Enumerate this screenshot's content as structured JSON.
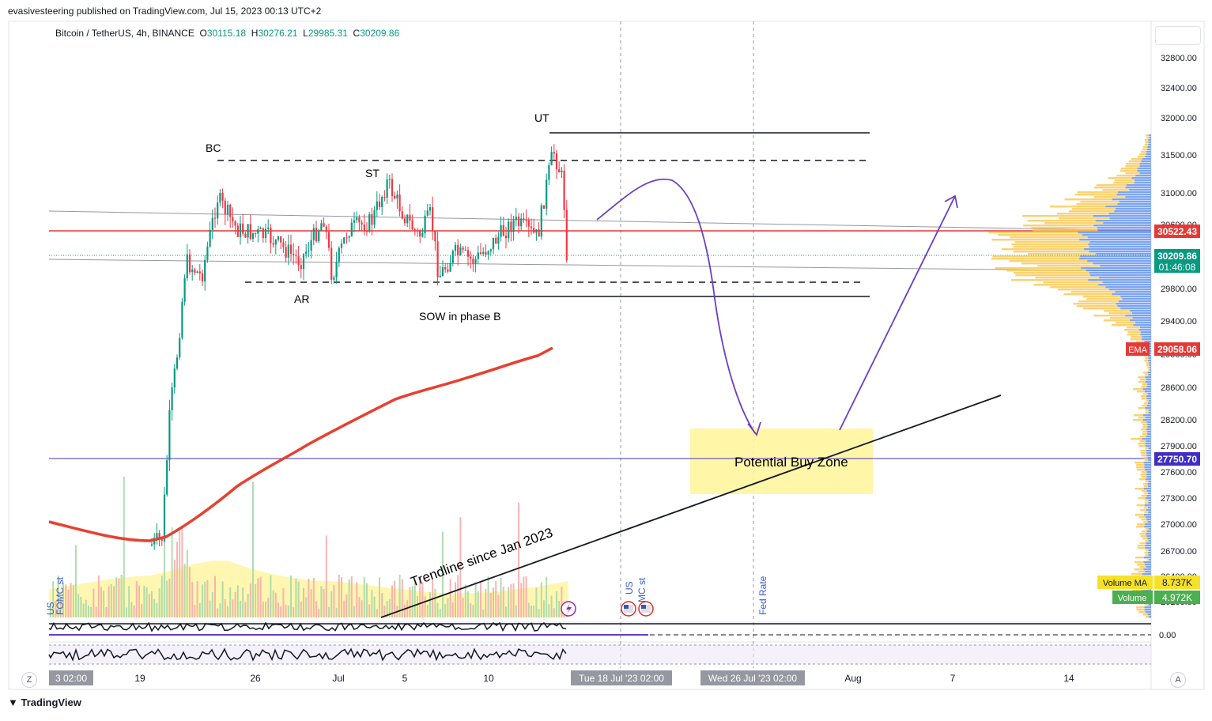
{
  "header": {
    "published_line": "evasivesteering published on TradingView.com, Jul 15, 2023 00:13 UTC+2",
    "symbol": "Bitcoin / TetherUS, 4h, BINANCE",
    "open_label": "O",
    "open": "30115.18",
    "high_label": "H",
    "high": "30276.21",
    "low_label": "L",
    "low": "29985.31",
    "close_label": "C",
    "close": "30209.86"
  },
  "footer": {
    "brand": "TradingView",
    "z_button": "Z",
    "a_button": "A"
  },
  "chart_data": {
    "type": "candlestick",
    "y_ticks": [
      "32800.00",
      "32400.00",
      "32000.00",
      "31500.00",
      "31000.00",
      "30600.00",
      "29800.00",
      "29400.00",
      "29000.00",
      "28600.00",
      "28200.00",
      "27900.00",
      "27600.00",
      "27300.00",
      "27000.00",
      "26700.00",
      "26400.00",
      "26100.00"
    ],
    "x_ticks": [
      "19",
      "26",
      "Jul",
      "5",
      "10",
      "Aug",
      "7",
      "14"
    ],
    "x_edge_labels": [
      "3   02:00"
    ],
    "x_range_labels": [
      "Tue 18 Jul '23   02:00",
      "Wed 26 Jul '23   02:00"
    ],
    "price_labels": {
      "red_level": "30522.43",
      "last_price": "30209.86",
      "countdown": "01:46:08",
      "ema_tag": "EMA",
      "ema_value": "29058.06",
      "purple_level": "27750.70",
      "volume_ma_tag": "Volume MA",
      "volume_ma_value": "8.737K",
      "volume_tag": "Volume",
      "volume_value": "4.972K",
      "osc_zero": "0.00"
    },
    "levels": {
      "red_level": 30522.43,
      "purple_level": 27750.7,
      "last_price": 30209.86
    },
    "annotations": {
      "bc": "BC",
      "st": "ST",
      "ar": "AR",
      "ut": "UT",
      "sow": "SOW in phase B",
      "buy_zone": "Potential Buy Zone",
      "trendline": "Trendline since Jan 2023",
      "fed_rate": "Fed Rate",
      "us": "US",
      "fomc_st": "MC st",
      "left_fomc": "FOMC st",
      "left_us": "US"
    },
    "colors": {
      "up": "#089981",
      "down": "#f23645",
      "ema": "#e8402f",
      "level": "#e53935",
      "purple": "#3f2ec4",
      "arrow": "#6a3ec5",
      "zone": "#fff59d"
    }
  }
}
